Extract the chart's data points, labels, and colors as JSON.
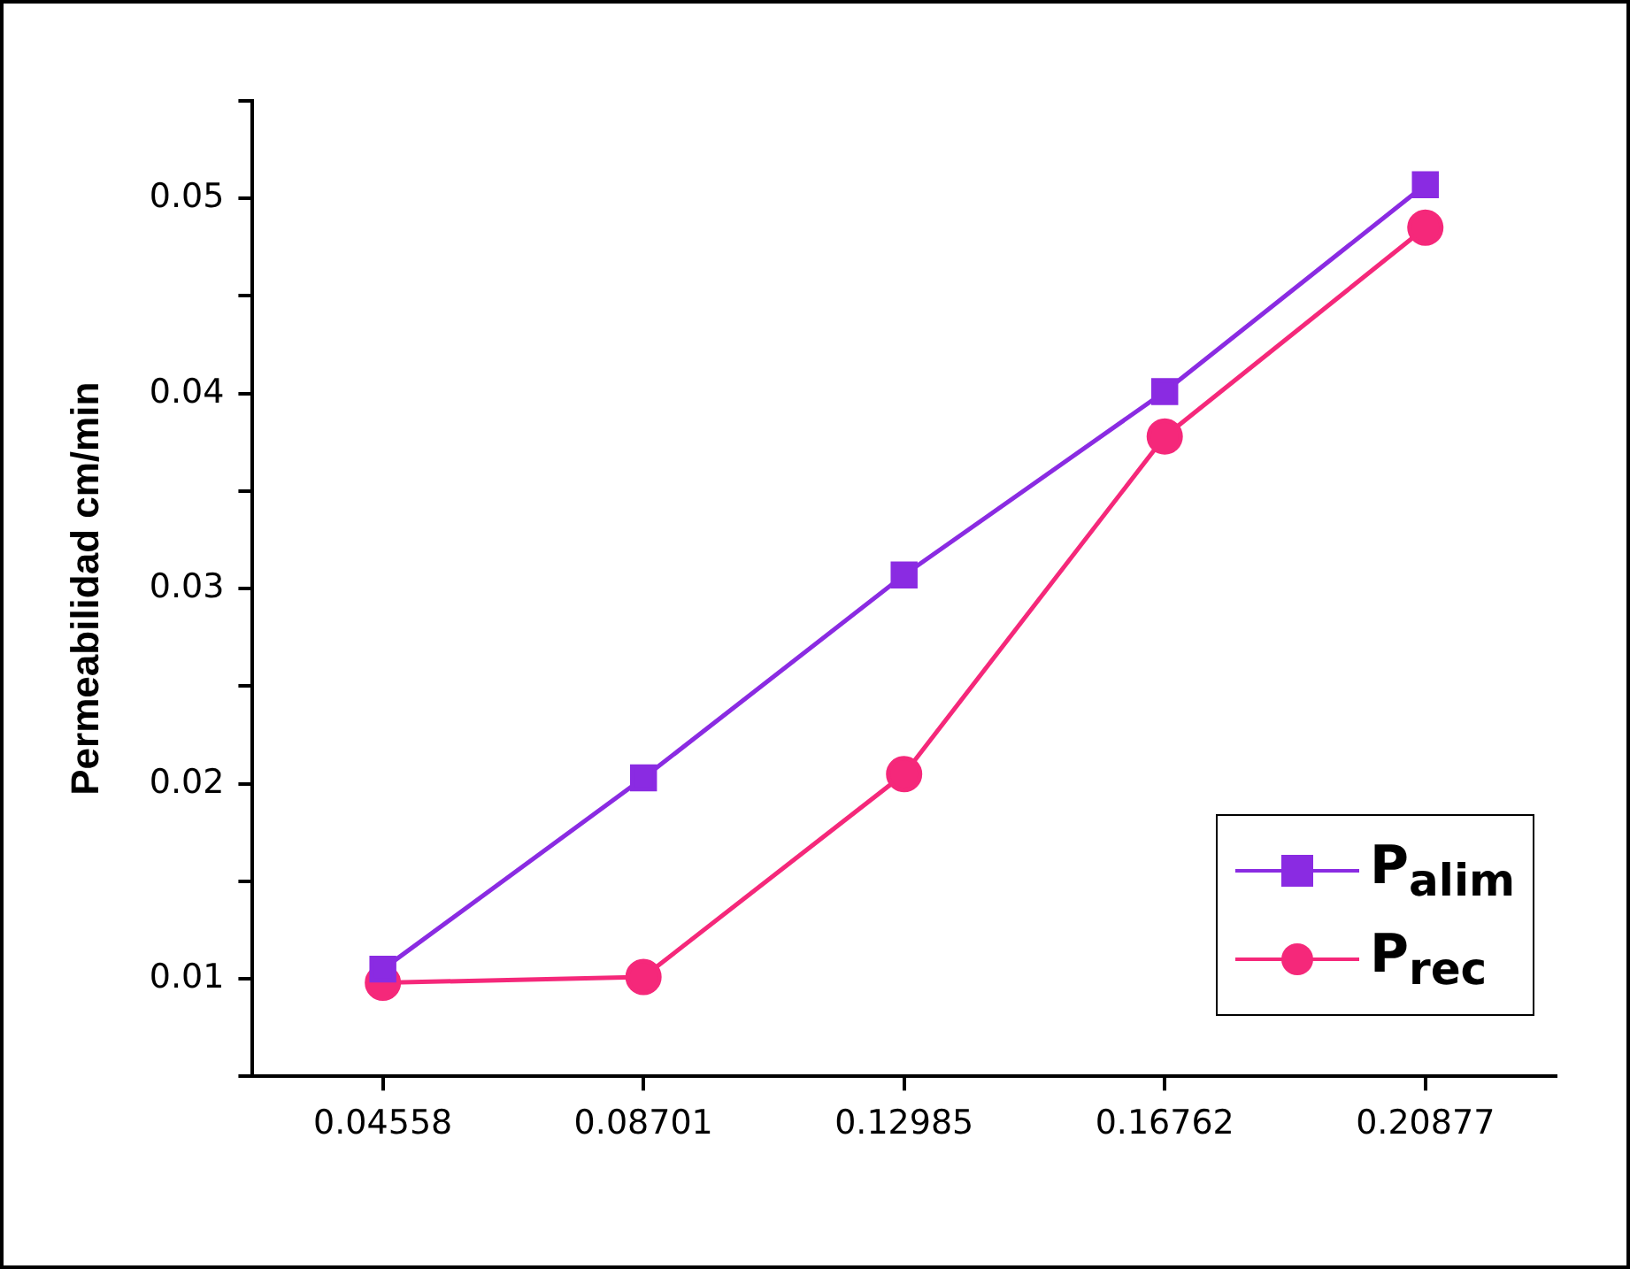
{
  "chart_data": {
    "type": "line",
    "ylabel": "Permeabilidad cm/min",
    "categories": [
      "0.04558",
      "0.08701",
      "0.12985",
      "0.16762",
      "0.20877"
    ],
    "series": [
      {
        "name": "P$_{alim}$",
        "color": "#8a2be2",
        "marker": "square",
        "values": [
          0.0105,
          0.0203,
          0.0307,
          0.0401,
          0.0507
        ]
      },
      {
        "name": "P$_{rec}$",
        "color": "#f5287a",
        "marker": "circle",
        "values": [
          0.0098,
          0.0101,
          0.0205,
          0.0378,
          0.0485
        ]
      }
    ],
    "ylim": [
      0.005,
      0.055
    ],
    "yticks": [
      {
        "value": 0.005,
        "label": null
      },
      0.01,
      {
        "value": 0.015,
        "label": null
      },
      0.02,
      {
        "value": 0.025,
        "label": null
      },
      0.03,
      {
        "value": 0.035,
        "label": null
      },
      0.04,
      {
        "value": 0.045,
        "label": null
      },
      0.05,
      {
        "value": 0.055,
        "label": null
      }
    ],
    "grid": false,
    "legend": "bottom right",
    "line_style": "solid"
  }
}
